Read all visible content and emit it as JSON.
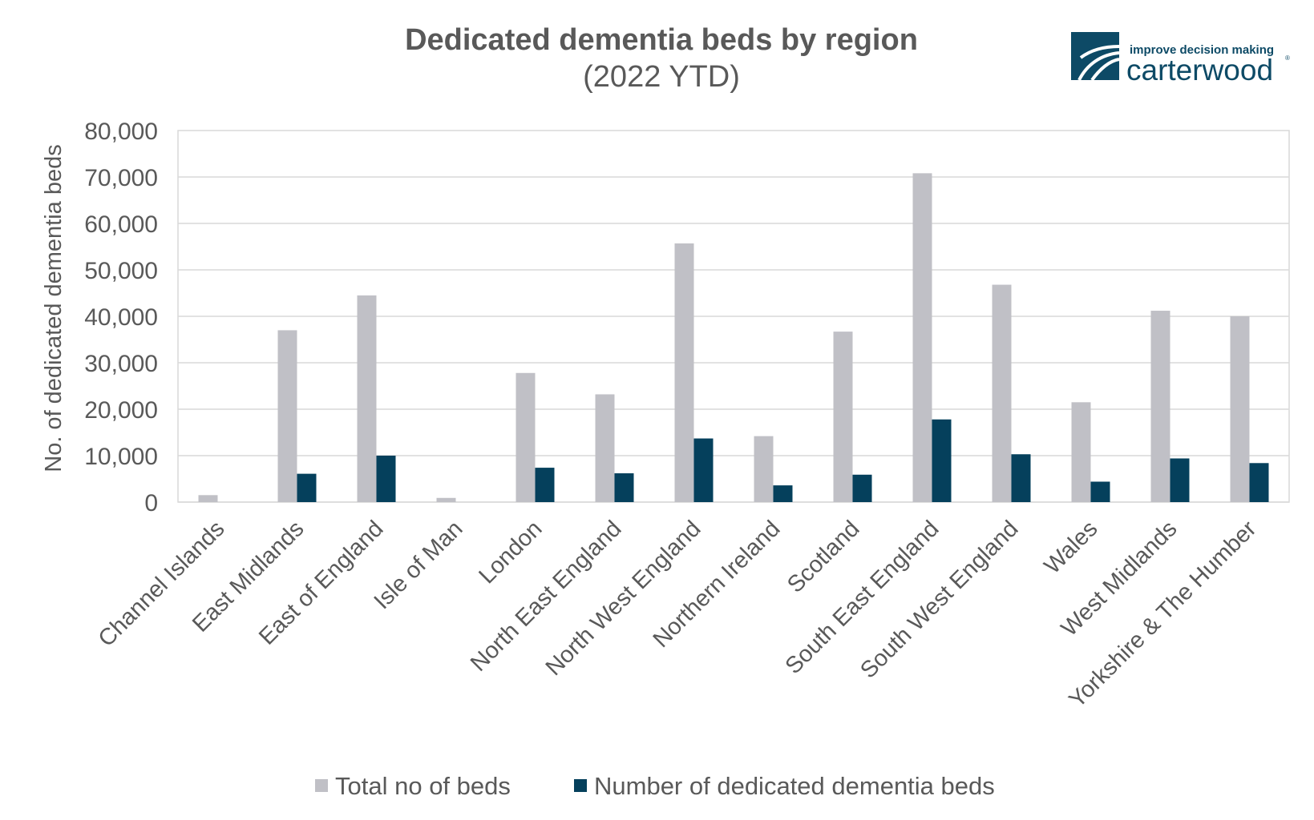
{
  "brand": {
    "tagline": "improve decision making",
    "name": "carterwood",
    "registered": "®",
    "color": "#0d4a66"
  },
  "chart_data": {
    "type": "bar",
    "title": "Dedicated dementia beds by region",
    "subtitle": "(2022 YTD)",
    "xlabel": "",
    "ylabel": "No. of dedicated dementia beds",
    "ylim": [
      0,
      80000
    ],
    "yticks": [
      0,
      10000,
      20000,
      30000,
      40000,
      50000,
      60000,
      70000,
      80000
    ],
    "ytick_labels": [
      "0",
      "10,000",
      "20,000",
      "30,000",
      "40,000",
      "50,000",
      "60,000",
      "70,000",
      "80,000"
    ],
    "grid": true,
    "legend_position": "bottom",
    "categories": [
      "Channel Islands",
      "East Midlands",
      "East of England",
      "Isle of Man",
      "London",
      "North East England",
      "North West England",
      "Northern Ireland",
      "Scotland",
      "South East England",
      "South West England",
      "Wales",
      "West Midlands",
      "Yorkshire & The Humber"
    ],
    "series": [
      {
        "name": "Total no of beds",
        "color": "#c0c0c6",
        "values": [
          1500,
          37000,
          44500,
          900,
          27800,
          23200,
          55700,
          14200,
          36700,
          70800,
          46800,
          21500,
          41200,
          40000
        ]
      },
      {
        "name": "Number of dedicated dementia beds",
        "color": "#05405c",
        "values": [
          0,
          6100,
          10000,
          0,
          7400,
          6200,
          13700,
          3600,
          5900,
          17800,
          10300,
          4400,
          9400,
          8400
        ]
      }
    ]
  }
}
